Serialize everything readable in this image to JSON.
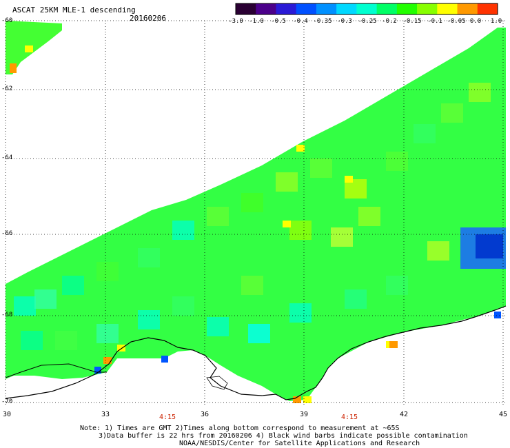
{
  "title": "ASCAT 25KM MLE-1 descending",
  "date": "20160206",
  "colorbar": {
    "ticks": [
      "-3.0",
      "-1.0",
      "-0.5",
      "-0.4",
      "-0.35",
      "-0.3",
      "-0.25",
      "-0.2",
      "-0.15",
      "-0.1",
      "-0.05",
      "0.0",
      "1.0"
    ],
    "colors": [
      "#2a0033",
      "#4b008a",
      "#2a1ad6",
      "#0050ff",
      "#0090ff",
      "#00d8ff",
      "#00ffd0",
      "#00ff66",
      "#22ff00",
      "#88ff00",
      "#ffff00",
      "#ff9900",
      "#ff3300"
    ]
  },
  "map": {
    "lat_labels": [
      "-60",
      "-62",
      "-64",
      "-66",
      "-68",
      "-70"
    ],
    "lon_labels": [
      "30",
      "33",
      "36",
      "39",
      "42",
      "45"
    ],
    "time_labels": [
      "4:15",
      "4:15"
    ]
  },
  "notes": {
    "line1": "Note: 1) Times are GMT 2)Times along bottom correspond to measurement at ~65S",
    "line2": "3)Data buffer is 22 hrs from 20160206 4) Black wind barbs indicate possible contamination",
    "line3": "NOAA/NESDIS/Center for Satellite Applications and Research"
  }
}
